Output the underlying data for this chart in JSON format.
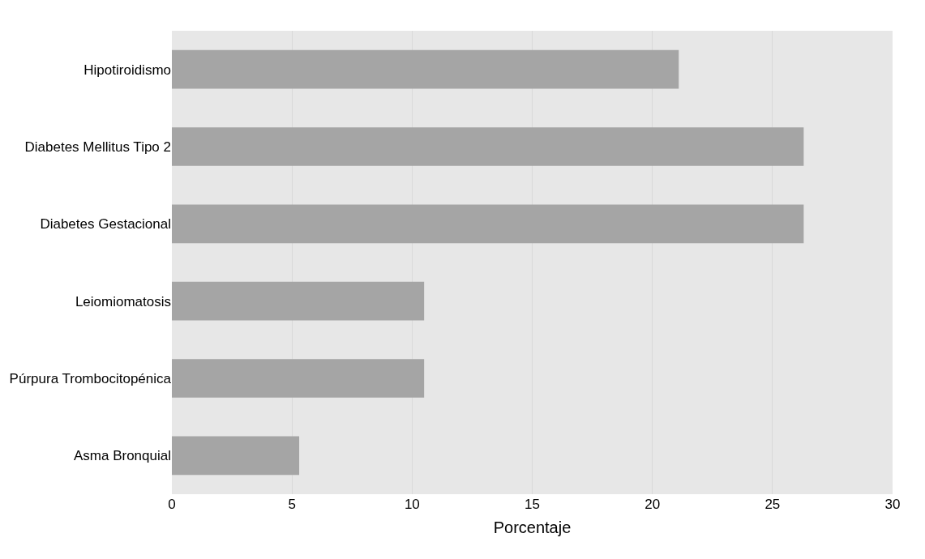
{
  "chart_data": {
    "type": "bar",
    "orientation": "horizontal",
    "xlabel": "Porcentaje",
    "categories": [
      "Hipotiroidismo",
      "Diabetes Mellitus Tipo 2",
      "Diabetes Gestacional",
      "Leiomiomatosis",
      "Púrpura Trombocitopénica",
      "Asma Bronquial"
    ],
    "values": [
      21.1,
      26.3,
      26.3,
      10.5,
      10.5,
      5.3
    ],
    "color": "#a5a5a5",
    "xlim": [
      0,
      30
    ],
    "xticks": [
      0,
      5,
      10,
      15,
      20,
      25,
      30
    ],
    "grid": "x",
    "legend": false
  }
}
